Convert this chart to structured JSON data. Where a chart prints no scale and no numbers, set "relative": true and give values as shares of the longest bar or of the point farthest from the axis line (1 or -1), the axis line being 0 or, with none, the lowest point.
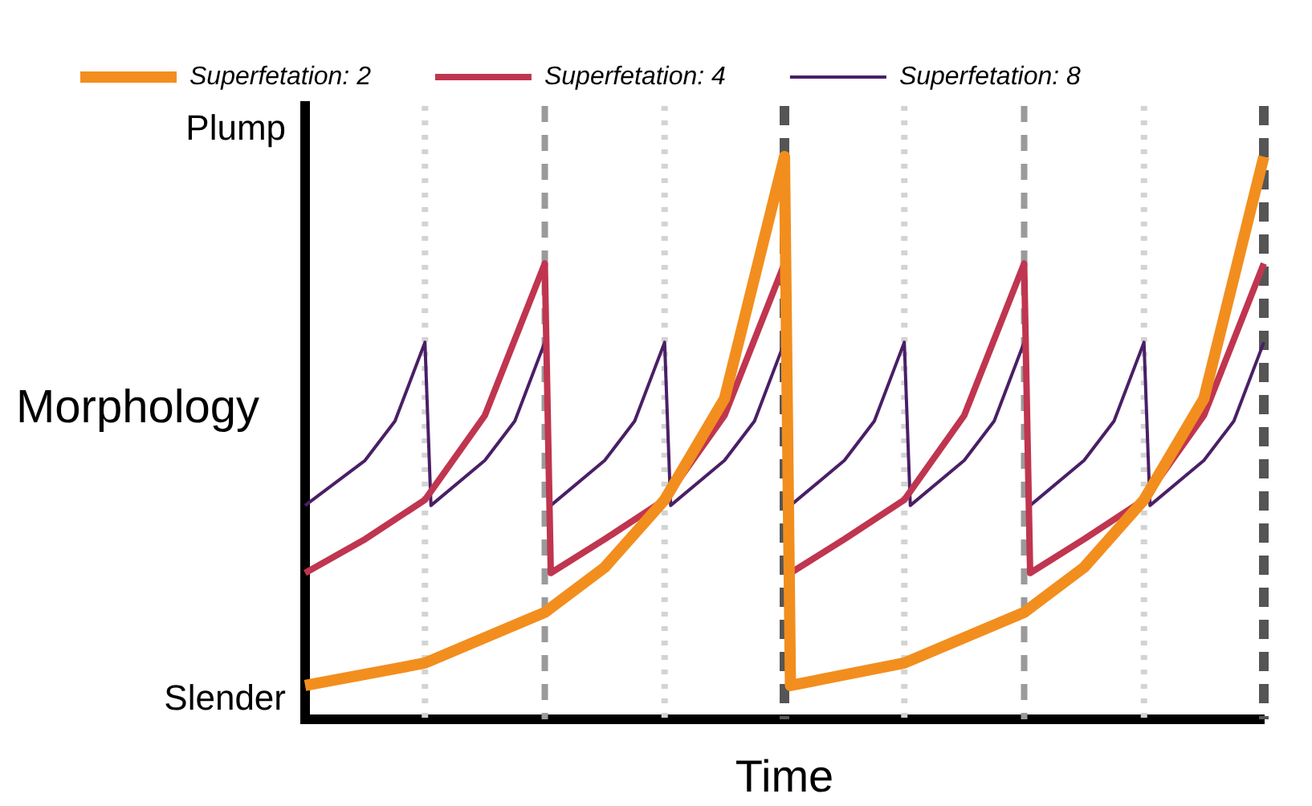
{
  "chart_data": {
    "type": "line",
    "relative": true,
    "xlabel": "Time",
    "ylabel": "Morphology",
    "annotations": [
      "Plump",
      "Slender"
    ],
    "grid": false,
    "legend": "top",
    "marker": "none",
    "line_style": "solid",
    "categories": [
      null,
      null,
      null,
      null,
      null,
      null,
      null,
      null,
      null,
      null,
      null,
      null,
      null,
      null,
      null,
      null,
      null,
      null,
      null,
      null,
      null,
      null,
      null,
      null,
      null,
      null,
      null,
      null,
      null,
      null,
      null,
      null,
      null,
      null,
      null,
      null,
      null,
      null,
      null,
      null,
      null,
      null,
      null,
      null,
      null,
      null,
      null,
      null,
      null,
      null,
      null,
      null,
      null,
      null,
      null,
      null,
      null,
      null,
      null,
      null,
      null,
      null,
      null,
      null,
      null,
      null,
      null,
      null,
      null,
      null,
      null,
      null,
      null,
      null,
      null,
      null,
      null,
      null,
      null,
      null,
      null,
      null,
      null,
      null,
      null,
      null,
      null,
      null,
      null,
      null,
      null,
      null,
      null,
      null,
      null,
      null,
      null,
      null,
      null,
      null,
      null,
      null,
      null,
      null,
      null,
      null,
      null,
      null,
      null,
      null,
      null,
      null,
      null,
      null,
      null,
      null,
      null,
      null,
      null,
      null,
      null,
      null,
      null,
      null,
      null,
      null,
      null,
      null,
      null,
      null,
      null,
      null,
      null,
      null,
      null,
      null,
      null,
      null,
      null,
      null,
      null,
      null,
      null,
      null,
      null,
      null,
      null,
      null,
      null,
      null,
      null,
      null,
      null,
      null,
      null,
      null,
      null,
      null,
      null,
      null,
      null
    ],
    "series": [
      {
        "name": "Superfetation: 2",
        "color": "#f28e1e",
        "values": [
          0.06,
          null,
          null,
          null,
          null,
          null,
          null,
          null,
          null,
          null,
          null,
          null,
          null,
          null,
          null,
          null,
          null,
          null,
          null,
          null,
          0.1,
          null,
          null,
          null,
          null,
          null,
          null,
          null,
          null,
          null,
          null,
          null,
          null,
          null,
          null,
          null,
          null,
          null,
          null,
          null,
          0.19,
          null,
          null,
          null,
          null,
          null,
          null,
          null,
          null,
          null,
          0.27,
          null,
          null,
          null,
          null,
          null,
          null,
          null,
          null,
          null,
          0.39,
          null,
          null,
          null,
          null,
          null,
          null,
          null,
          null,
          null,
          0.57,
          null,
          null,
          null,
          null,
          null,
          null,
          null,
          null,
          null,
          1,
          0.06,
          null,
          null,
          null,
          null,
          null,
          null,
          null,
          null,
          null,
          null,
          null,
          null,
          null,
          null,
          null,
          null,
          null,
          null,
          0.1,
          null,
          null,
          null,
          null,
          null,
          null,
          null,
          null,
          null,
          null,
          null,
          null,
          null,
          null,
          null,
          null,
          null,
          null,
          null,
          0.19,
          null,
          null,
          null,
          null,
          null,
          null,
          null,
          null,
          null,
          0.27,
          null,
          null,
          null,
          null,
          null,
          null,
          null,
          null,
          null,
          0.39,
          null,
          null,
          null,
          null,
          null,
          null,
          null,
          null,
          null,
          0.57,
          null,
          null,
          null,
          null,
          null,
          null,
          null,
          null,
          null,
          1
        ]
      },
      {
        "name": "Superfetation: 4",
        "color": "#c0354f",
        "values": [
          0.26,
          null,
          null,
          null,
          null,
          null,
          null,
          null,
          null,
          null,
          0.32,
          null,
          null,
          null,
          null,
          null,
          null,
          null,
          null,
          null,
          0.39,
          null,
          null,
          null,
          null,
          null,
          null,
          null,
          null,
          null,
          0.54,
          null,
          null,
          null,
          null,
          null,
          null,
          null,
          null,
          null,
          0.81,
          0.26,
          null,
          null,
          null,
          null,
          null,
          null,
          null,
          null,
          0.32,
          null,
          null,
          null,
          null,
          null,
          null,
          null,
          null,
          null,
          0.39,
          null,
          null,
          null,
          null,
          null,
          null,
          null,
          null,
          null,
          0.54,
          null,
          null,
          null,
          null,
          null,
          null,
          null,
          null,
          null,
          0.81,
          0.26,
          null,
          null,
          null,
          null,
          null,
          null,
          null,
          null,
          0.32,
          null,
          null,
          null,
          null,
          null,
          null,
          null,
          null,
          null,
          0.39,
          null,
          null,
          null,
          null,
          null,
          null,
          null,
          null,
          null,
          0.54,
          null,
          null,
          null,
          null,
          null,
          null,
          null,
          null,
          null,
          0.81,
          0.26,
          null,
          null,
          null,
          null,
          null,
          null,
          null,
          null,
          0.32,
          null,
          null,
          null,
          null,
          null,
          null,
          null,
          null,
          null,
          0.39,
          null,
          null,
          null,
          null,
          null,
          null,
          null,
          null,
          null,
          0.54,
          null,
          null,
          null,
          null,
          null,
          null,
          null,
          null,
          null,
          0.81
        ]
      },
      {
        "name": "Superfetation: 8",
        "color": "#4a1f66",
        "values": [
          0.38,
          null,
          null,
          null,
          null,
          null,
          null,
          null,
          null,
          null,
          0.46,
          null,
          null,
          null,
          null,
          0.53,
          null,
          null,
          null,
          null,
          0.67,
          0.38,
          null,
          null,
          null,
          null,
          null,
          null,
          null,
          null,
          0.46,
          null,
          null,
          null,
          null,
          0.53,
          null,
          null,
          null,
          null,
          0.67,
          0.38,
          null,
          null,
          null,
          null,
          null,
          null,
          null,
          null,
          0.46,
          null,
          null,
          null,
          null,
          0.53,
          null,
          null,
          null,
          null,
          0.67,
          0.38,
          null,
          null,
          null,
          null,
          null,
          null,
          null,
          null,
          0.46,
          null,
          null,
          null,
          null,
          0.53,
          null,
          null,
          null,
          null,
          0.67,
          0.38,
          null,
          null,
          null,
          null,
          null,
          null,
          null,
          null,
          0.46,
          null,
          null,
          null,
          null,
          0.53,
          null,
          null,
          null,
          null,
          0.67,
          0.38,
          null,
          null,
          null,
          null,
          null,
          null,
          null,
          null,
          0.46,
          null,
          null,
          null,
          null,
          0.53,
          null,
          null,
          null,
          null,
          0.67,
          0.38,
          null,
          null,
          null,
          null,
          null,
          null,
          null,
          null,
          0.46,
          null,
          null,
          null,
          null,
          0.53,
          null,
          null,
          null,
          null,
          0.67,
          0.38,
          null,
          null,
          null,
          null,
          null,
          null,
          null,
          null,
          0.46,
          null,
          null,
          null,
          null,
          0.53,
          null,
          null,
          null,
          null,
          0.67
        ]
      }
    ]
  }
}
